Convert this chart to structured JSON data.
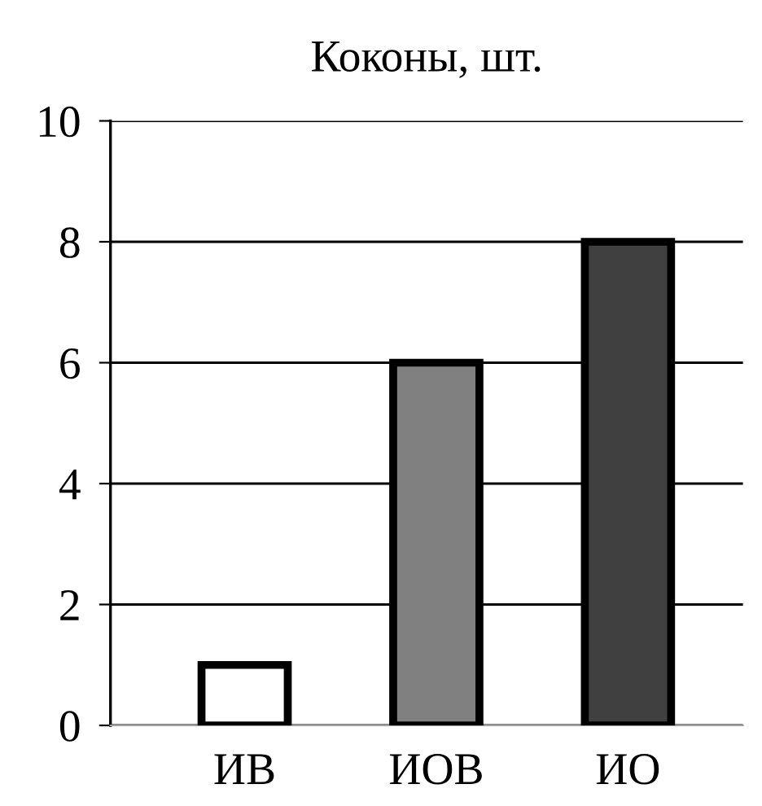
{
  "chart_data": {
    "type": "bar",
    "title": "Коконы, шт.",
    "categories": [
      "ИВ",
      "ИОВ",
      "ИО"
    ],
    "values": [
      1,
      6,
      8
    ],
    "colors": [
      "#ffffff",
      "#808080",
      "#404040"
    ],
    "ylim": [
      0,
      10
    ],
    "yticks": [
      0,
      2,
      4,
      6,
      8,
      10
    ],
    "grid": "y",
    "legend": false
  }
}
